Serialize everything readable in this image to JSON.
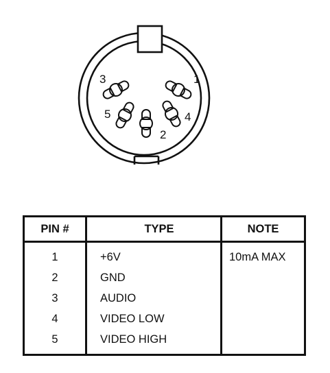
{
  "connector": {
    "pin_labels": [
      "1",
      "2",
      "3",
      "4",
      "5"
    ]
  },
  "table": {
    "headers": [
      "PIN #",
      "TYPE",
      "NOTE"
    ],
    "rows": [
      {
        "pin": "1",
        "type": "+6V",
        "note": "10mA MAX"
      },
      {
        "pin": "2",
        "type": "GND",
        "note": ""
      },
      {
        "pin": "3",
        "type": "AUDIO",
        "note": ""
      },
      {
        "pin": "4",
        "type": "VIDEO LOW",
        "note": ""
      },
      {
        "pin": "5",
        "type": "VIDEO HIGH",
        "note": ""
      }
    ]
  }
}
